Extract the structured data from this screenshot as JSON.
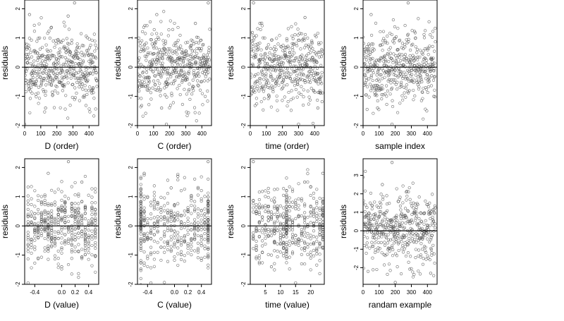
{
  "chart_data": [
    {
      "type": "scatter",
      "xlabel": "D (order)",
      "ylabel": "residuals",
      "xlim": [
        0,
        460
      ],
      "ylim": [
        -2.0,
        2.3
      ],
      "xticks": [
        0,
        100,
        200,
        300,
        400
      ],
      "xtick_labels": [
        "0",
        "100",
        "200",
        "300",
        "400"
      ],
      "yticks": [
        -2,
        -1,
        0,
        1,
        2
      ],
      "ytick_labels": [
        "-2",
        "-1",
        "0",
        "1",
        "2"
      ],
      "reference_line": 0,
      "n_points": 450,
      "x_kind": "index",
      "x_values": [],
      "marker": "open-circle",
      "seed": 11,
      "points": [
        [
          0,
          -1.95
        ],
        [
          270,
          1.75
        ],
        [
          310,
          2.2
        ],
        [
          130,
          -1.4
        ],
        [
          30,
          1.8
        ]
      ]
    },
    {
      "type": "scatter",
      "xlabel": "C (order)",
      "ylabel": "residuals",
      "xlim": [
        0,
        460
      ],
      "ylim": [
        -2.0,
        2.3
      ],
      "xticks": [
        0,
        100,
        200,
        300,
        400
      ],
      "xtick_labels": [
        "0",
        "100",
        "200",
        "300",
        "400"
      ],
      "yticks": [
        -2,
        -1,
        0,
        1,
        2
      ],
      "ytick_labels": [
        "-2",
        "-1",
        "0",
        "1",
        "2"
      ],
      "reference_line": 0,
      "n_points": 450,
      "x_kind": "index",
      "x_values": [],
      "marker": "open-circle",
      "seed": 23,
      "points": [
        [
          180,
          -1.95
        ],
        [
          440,
          2.2
        ],
        [
          150,
          -1.4
        ],
        [
          120,
          1.8
        ],
        [
          360,
          1.5
        ]
      ]
    },
    {
      "type": "scatter",
      "xlabel": "time (order)",
      "ylabel": "residuals",
      "xlim": [
        0,
        460
      ],
      "ylim": [
        -2.0,
        2.3
      ],
      "xticks": [
        0,
        100,
        200,
        300,
        400
      ],
      "xtick_labels": [
        "0",
        "100",
        "200",
        "300",
        "400"
      ],
      "yticks": [
        -2,
        -1,
        0,
        1,
        2
      ],
      "ytick_labels": [
        "-2",
        "-1",
        "0",
        "1",
        "2"
      ],
      "reference_line": 0,
      "n_points": 450,
      "x_kind": "index",
      "x_values": [],
      "marker": "open-circle",
      "seed": 37,
      "points": [
        [
          20,
          2.2
        ],
        [
          300,
          -1.95
        ],
        [
          340,
          1.7
        ],
        [
          420,
          -1.4
        ],
        [
          60,
          1.5
        ]
      ]
    },
    {
      "type": "scatter",
      "xlabel": "sample index",
      "ylabel": "residuals",
      "xlim": [
        0,
        460
      ],
      "ylim": [
        -2.0,
        2.3
      ],
      "xticks": [
        0,
        100,
        200,
        300,
        400
      ],
      "xtick_labels": [
        "0",
        "100",
        "200",
        "300",
        "400"
      ],
      "yticks": [
        -2,
        -1,
        0,
        1,
        2
      ],
      "ytick_labels": [
        "-2",
        "-1",
        "0",
        "1",
        "2"
      ],
      "reference_line": 0,
      "n_points": 450,
      "x_kind": "index",
      "x_values": [],
      "marker": "open-circle",
      "seed": 41,
      "points": [
        [
          280,
          2.2
        ],
        [
          180,
          -1.95
        ],
        [
          50,
          1.8
        ],
        [
          440,
          -1.0
        ],
        [
          90,
          -1.4
        ]
      ]
    },
    {
      "type": "scatter",
      "xlabel": "D (value)",
      "ylabel": "residuals",
      "xlim": [
        -0.55,
        0.55
      ],
      "ylim": [
        -2.0,
        2.3
      ],
      "xticks": [
        -0.4,
        0.0,
        0.2,
        0.4
      ],
      "xtick_labels": [
        "-0.4",
        "0.0",
        "0.2",
        "0.4"
      ],
      "yticks": [
        -2,
        -1,
        0,
        1,
        2
      ],
      "ytick_labels": [
        "-2",
        "-1",
        "0",
        "1",
        "2"
      ],
      "reference_line": 0,
      "n_points": 450,
      "x_kind": "discrete",
      "x_values": [
        -0.5,
        -0.45,
        -0.4,
        -0.35,
        -0.3,
        -0.25,
        -0.2,
        -0.15,
        -0.1,
        -0.05,
        0.0,
        0.05,
        0.1,
        0.15,
        0.2,
        0.25,
        0.3,
        0.35,
        0.4,
        0.45,
        0.5
      ],
      "marker": "open-circle",
      "seed": 53,
      "points": [
        [
          -0.5,
          -1.95
        ],
        [
          0.1,
          2.2
        ],
        [
          0.0,
          -1.4
        ],
        [
          -0.2,
          1.8
        ],
        [
          0.3,
          1.5
        ]
      ]
    },
    {
      "type": "scatter",
      "xlabel": "C (value)",
      "ylabel": "residuals",
      "xlim": [
        -0.55,
        0.55
      ],
      "ylim": [
        -2.0,
        2.3
      ],
      "xticks": [
        -0.4,
        0.0,
        0.2,
        0.4
      ],
      "xtick_labels": [
        "-0.4",
        "0.0",
        "0.2",
        "0.4"
      ],
      "yticks": [
        -2,
        -1,
        0,
        1,
        2
      ],
      "ytick_labels": [
        "-2",
        "-1",
        "0",
        "1",
        "2"
      ],
      "reference_line": 0,
      "n_points": 450,
      "x_kind": "discrete",
      "x_values": [
        -0.5,
        -0.5,
        -0.5,
        -0.45,
        -0.4,
        -0.35,
        -0.3,
        -0.25,
        -0.2,
        -0.15,
        -0.1,
        -0.05,
        0.0,
        0.05,
        0.1,
        0.15,
        0.2,
        0.25,
        0.3,
        0.35,
        0.4,
        0.45,
        0.5,
        0.5,
        0.5
      ],
      "marker": "open-circle",
      "seed": 67,
      "points": [
        [
          -0.35,
          -1.95
        ],
        [
          0.5,
          2.2
        ],
        [
          -0.45,
          1.8
        ],
        [
          0.05,
          1.7
        ],
        [
          -0.05,
          1.3
        ]
      ]
    },
    {
      "type": "scatter",
      "xlabel": "time (value)",
      "ylabel": "residuals",
      "xlim": [
        0,
        24.5
      ],
      "ylim": [
        -2.0,
        2.3
      ],
      "xticks": [
        5,
        10,
        15,
        20
      ],
      "xtick_labels": [
        "5",
        "10",
        "15",
        "20"
      ],
      "yticks": [
        -2,
        -1,
        0,
        1,
        2
      ],
      "ytick_labels": [
        "-2",
        "-1",
        "0",
        "1",
        "2"
      ],
      "reference_line": 0,
      "n_points": 450,
      "x_kind": "discrete",
      "x_values": [
        1,
        2,
        3,
        4,
        5,
        6,
        7,
        8,
        9,
        10,
        11,
        12,
        12,
        12,
        13,
        14,
        15,
        16,
        17,
        18,
        19,
        20,
        21,
        22,
        23,
        24,
        24
      ],
      "marker": "open-circle",
      "seed": 79,
      "points": [
        [
          1,
          2.2
        ],
        [
          15,
          -1.95
        ],
        [
          24,
          1.8
        ],
        [
          18,
          1.5
        ],
        [
          7,
          -1.4
        ]
      ]
    },
    {
      "type": "scatter",
      "xlabel": "randam example",
      "ylabel": "residuals",
      "xlim": [
        0,
        460
      ],
      "ylim": [
        -2.9,
        3.9
      ],
      "xticks": [
        0,
        100,
        200,
        300,
        400
      ],
      "xtick_labels": [
        "0",
        "100",
        "200",
        "300",
        "400"
      ],
      "yticks": [
        -2,
        -1,
        0,
        1,
        2,
        3
      ],
      "ytick_labels": [
        "-2",
        "-1",
        "0",
        "1",
        "2",
        "3"
      ],
      "reference_line": 0,
      "n_points": 450,
      "x_kind": "index",
      "x_values": [],
      "marker": "open-circle",
      "seed": 97,
      "points": [
        [
          180,
          3.7
        ],
        [
          200,
          -2.8
        ],
        [
          0,
          2.9
        ],
        [
          420,
          -2.3
        ],
        [
          120,
          2.5
        ]
      ]
    }
  ]
}
